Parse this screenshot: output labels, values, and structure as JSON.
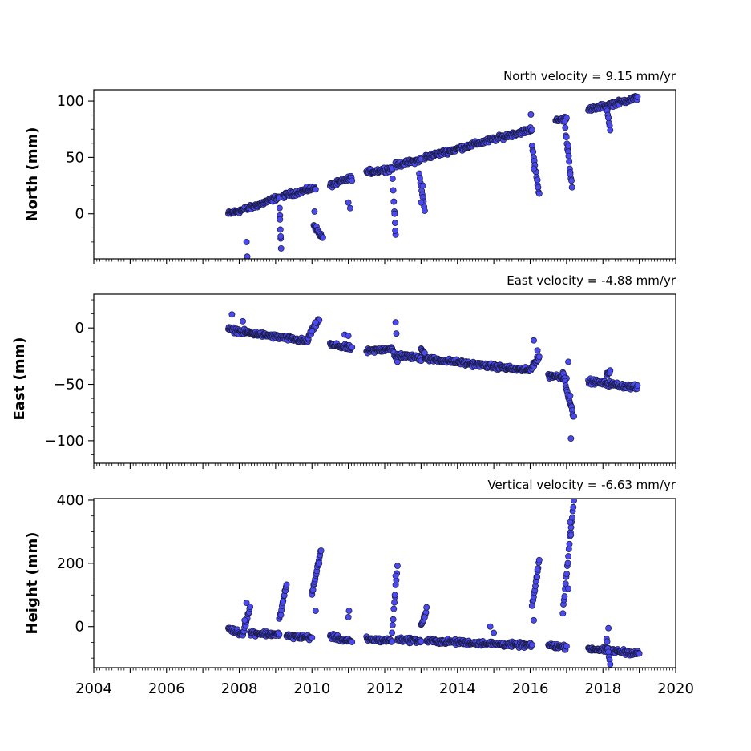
{
  "chart_data": {
    "type": "scatter",
    "xlim": [
      2004,
      2020
    ],
    "x_ticks": [
      2004,
      2006,
      2008,
      2010,
      2012,
      2014,
      2016,
      2018,
      2020
    ],
    "marker_color": "#4a4af0",
    "marker_edge_color": "#1a1a40",
    "grid": false,
    "panels": [
      {
        "id": "north",
        "title": "North velocity = 9.15 mm/yr",
        "ylabel": "North (mm)",
        "ylim": [
          -40,
          110
        ],
        "y_ticks": [
          0,
          50,
          100
        ],
        "segments": [
          {
            "x": [
              2007.7,
              2008.15
            ],
            "y": [
              0,
              4
            ],
            "jumps": [
              [
                2008.2,
                -25
              ],
              [
                2008.22,
                -38
              ]
            ]
          },
          {
            "x": [
              2008.2,
              2009.1
            ],
            "y": [
              4,
              15
            ]
          },
          {
            "x": [
              2009.1,
              2009.15
            ],
            "y": [
              15,
              -32
            ],
            "jumps": [
              [
                2009.12,
                -5
              ],
              [
                2009.14,
                -20
              ]
            ]
          },
          {
            "x": [
              2009.2,
              2010.1
            ],
            "y": [
              16,
              23
            ]
          },
          {
            "x": [
              2010.05,
              2010.3
            ],
            "y": [
              -10,
              -22
            ],
            "jumps": [
              [
                2010.07,
                2
              ]
            ]
          },
          {
            "x": [
              2010.5,
              2011.1
            ],
            "y": [
              25,
              32
            ],
            "jumps": [
              [
                2011.0,
                10
              ],
              [
                2011.05,
                5
              ]
            ]
          },
          {
            "x": [
              2011.5,
              2012.2
            ],
            "y": [
              37,
              40
            ]
          },
          {
            "x": [
              2012.2,
              2012.3
            ],
            "y": [
              40,
              -17
            ],
            "jumps": [
              [
                2012.27,
                0
              ],
              [
                2012.29,
                -15
              ]
            ]
          },
          {
            "x": [
              2012.3,
              2013.0
            ],
            "y": [
              43,
              48
            ]
          },
          {
            "x": [
              2012.95,
              2013.1
            ],
            "y": [
              35,
              3
            ],
            "jumps": [
              [
                2013.0,
                10
              ],
              [
                2013.05,
                25
              ]
            ]
          },
          {
            "x": [
              2013.1,
              2016.05
            ],
            "y": [
              50,
              75
            ]
          },
          {
            "x": [
              2016.05,
              2016.25
            ],
            "y": [
              60,
              17
            ],
            "jumps": [
              [
                2016.1,
                40
              ],
              [
                2016.2,
                30
              ],
              [
                2016.02,
                88
              ]
            ]
          },
          {
            "x": [
              2016.7,
              2017.0
            ],
            "y": [
              82,
              85
            ]
          },
          {
            "x": [
              2016.95,
              2017.15
            ],
            "y": [
              80,
              25
            ],
            "jumps": [
              [
                2017.05,
                60
              ],
              [
                2017.1,
                35
              ]
            ]
          },
          {
            "x": [
              2017.6,
              2018.95
            ],
            "y": [
              92,
              103
            ]
          },
          {
            "x": [
              2018.1,
              2018.2
            ],
            "y": [
              95,
              75
            ],
            "jumps": [
              [
                2018.15,
                85
              ]
            ]
          }
        ]
      },
      {
        "id": "east",
        "title": "East velocity = -4.88 mm/yr",
        "ylabel": "East (mm)",
        "ylim": [
          -120,
          30
        ],
        "y_ticks": [
          -100,
          -50,
          0
        ],
        "segments": [
          {
            "x": [
              2007.7,
              2008.2
            ],
            "y": [
              -1,
              -4
            ],
            "jumps": [
              [
                2007.8,
                12
              ],
              [
                2008.1,
                6
              ]
            ]
          },
          {
            "x": [
              2008.2,
              2009.9
            ],
            "y": [
              -4,
              -12
            ]
          },
          {
            "x": [
              2009.9,
              2010.2
            ],
            "y": [
              -8,
              8
            ],
            "jumps": [
              [
                2010.0,
                -3
              ],
              [
                2010.1,
                5
              ]
            ]
          },
          {
            "x": [
              2010.5,
              2011.1
            ],
            "y": [
              -15,
              -18
            ],
            "jumps": [
              [
                2010.9,
                -6
              ],
              [
                2011.0,
                -7
              ]
            ]
          },
          {
            "x": [
              2011.5,
              2012.2
            ],
            "y": [
              -21,
              -18
            ]
          },
          {
            "x": [
              2012.2,
              2012.35
            ],
            "y": [
              -20,
              -30
            ],
            "jumps": [
              [
                2012.3,
                5
              ],
              [
                2012.32,
                -5
              ]
            ]
          },
          {
            "x": [
              2012.35,
              2013.0
            ],
            "y": [
              -24,
              -27
            ]
          },
          {
            "x": [
              2013.0,
              2013.1
            ],
            "y": [
              -18,
              -22
            ]
          },
          {
            "x": [
              2013.1,
              2016.0
            ],
            "y": [
              -27,
              -38
            ]
          },
          {
            "x": [
              2016.0,
              2016.25
            ],
            "y": [
              -36,
              -26
            ],
            "jumps": [
              [
                2016.1,
                -11
              ],
              [
                2016.2,
                -20
              ]
            ]
          },
          {
            "x": [
              2016.5,
              2017.0
            ],
            "y": [
              -42,
              -44
            ]
          },
          {
            "x": [
              2016.9,
              2017.2
            ],
            "y": [
              -40,
              -80
            ],
            "jumps": [
              [
                2017.05,
                -30
              ],
              [
                2017.1,
                -60
              ],
              [
                2017.12,
                -98
              ]
            ]
          },
          {
            "x": [
              2017.6,
              2018.95
            ],
            "y": [
              -47,
              -53
            ]
          },
          {
            "x": [
              2018.1,
              2018.2
            ],
            "y": [
              -42,
              -38
            ]
          }
        ]
      },
      {
        "id": "height",
        "title": "Vertical velocity = -6.63 mm/yr",
        "ylabel": "Height (mm)",
        "ylim": [
          -130,
          405
        ],
        "y_ticks": [
          0,
          200,
          400
        ],
        "segments": [
          {
            "x": [
              2007.7,
              2008.1
            ],
            "y": [
              -5,
              -25
            ]
          },
          {
            "x": [
              2008.1,
              2008.3
            ],
            "y": [
              -20,
              60
            ],
            "jumps": [
              [
                2008.2,
                75
              ],
              [
                2008.15,
                20
              ]
            ]
          },
          {
            "x": [
              2008.3,
              2009.1
            ],
            "y": [
              -20,
              -25
            ]
          },
          {
            "x": [
              2009.1,
              2009.3
            ],
            "y": [
              20,
              135
            ],
            "jumps": [
              [
                2009.2,
                80
              ]
            ]
          },
          {
            "x": [
              2009.3,
              2010.0
            ],
            "y": [
              -30,
              -35
            ]
          },
          {
            "x": [
              2010.0,
              2010.25
            ],
            "y": [
              100,
              245
            ],
            "jumps": [
              [
                2010.1,
                50
              ],
              [
                2010.2,
                200
              ]
            ]
          },
          {
            "x": [
              2010.5,
              2011.1
            ],
            "y": [
              -30,
              -50
            ],
            "jumps": [
              [
                2011.0,
                30
              ],
              [
                2011.02,
                50
              ]
            ]
          },
          {
            "x": [
              2011.5,
              2012.2
            ],
            "y": [
              -40,
              -45
            ]
          },
          {
            "x": [
              2012.2,
              2012.35
            ],
            "y": [
              -20,
              195
            ],
            "jumps": [
              [
                2012.28,
                100
              ],
              [
                2012.3,
                160
              ]
            ]
          },
          {
            "x": [
              2012.35,
              2013.0
            ],
            "y": [
              -40,
              -45
            ]
          },
          {
            "x": [
              2013.0,
              2013.15
            ],
            "y": [
              0,
              55
            ],
            "jumps": [
              [
                2013.1,
                30
              ]
            ]
          },
          {
            "x": [
              2013.15,
              2016.05
            ],
            "y": [
              -45,
              -60
            ],
            "jumps": [
              [
                2014.9,
                0
              ],
              [
                2015.0,
                -20
              ]
            ]
          },
          {
            "x": [
              2016.05,
              2016.25
            ],
            "y": [
              60,
              210
            ],
            "jumps": [
              [
                2016.1,
                20
              ],
              [
                2016.2,
                180
              ]
            ]
          },
          {
            "x": [
              2016.5,
              2017.0
            ],
            "y": [
              -60,
              -65
            ]
          },
          {
            "x": [
              2016.9,
              2017.2
            ],
            "y": [
              50,
              400
            ],
            "jumps": [
              [
                2017.1,
                330
              ],
              [
                2017.12,
                290
              ],
              [
                2017.05,
                120
              ]
            ]
          },
          {
            "x": [
              2017.6,
              2019.0
            ],
            "y": [
              -70,
              -85
            ]
          },
          {
            "x": [
              2018.1,
              2018.2
            ],
            "y": [
              -40,
              -120
            ],
            "jumps": [
              [
                2018.15,
                -5
              ]
            ]
          }
        ]
      }
    ]
  }
}
